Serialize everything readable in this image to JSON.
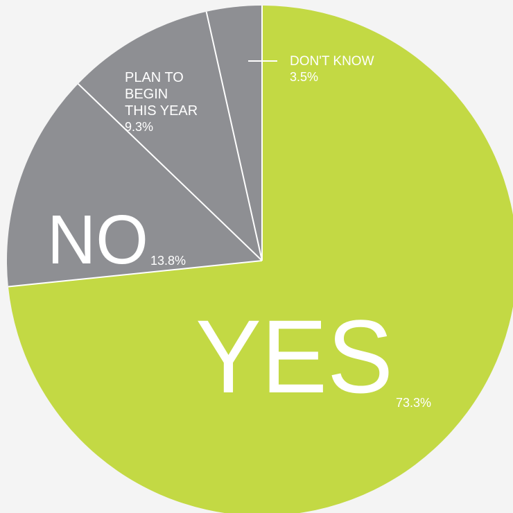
{
  "chart_data": {
    "type": "pie",
    "slices": [
      {
        "name": "YES",
        "value": 73.3,
        "value_label": "73.3%",
        "color": "#c3d944"
      },
      {
        "name": "NO",
        "value": 13.8,
        "value_label": "13.8%",
        "color": "#8e8f93"
      },
      {
        "name": "PLAN TO BEGIN THIS YEAR",
        "name_lines": [
          "PLAN TO",
          "BEGIN",
          "THIS YEAR"
        ],
        "value": 9.3,
        "value_label": "9.3%",
        "color": "#8e8f93"
      },
      {
        "name": "DON'T KNOW",
        "value": 3.5,
        "value_label": "3.5%",
        "color": "#8e8f93"
      }
    ],
    "start_angle": "12 o'clock",
    "direction": "clockwise",
    "separator_color": "#ffffff",
    "background_color": "#f4f4f4"
  }
}
